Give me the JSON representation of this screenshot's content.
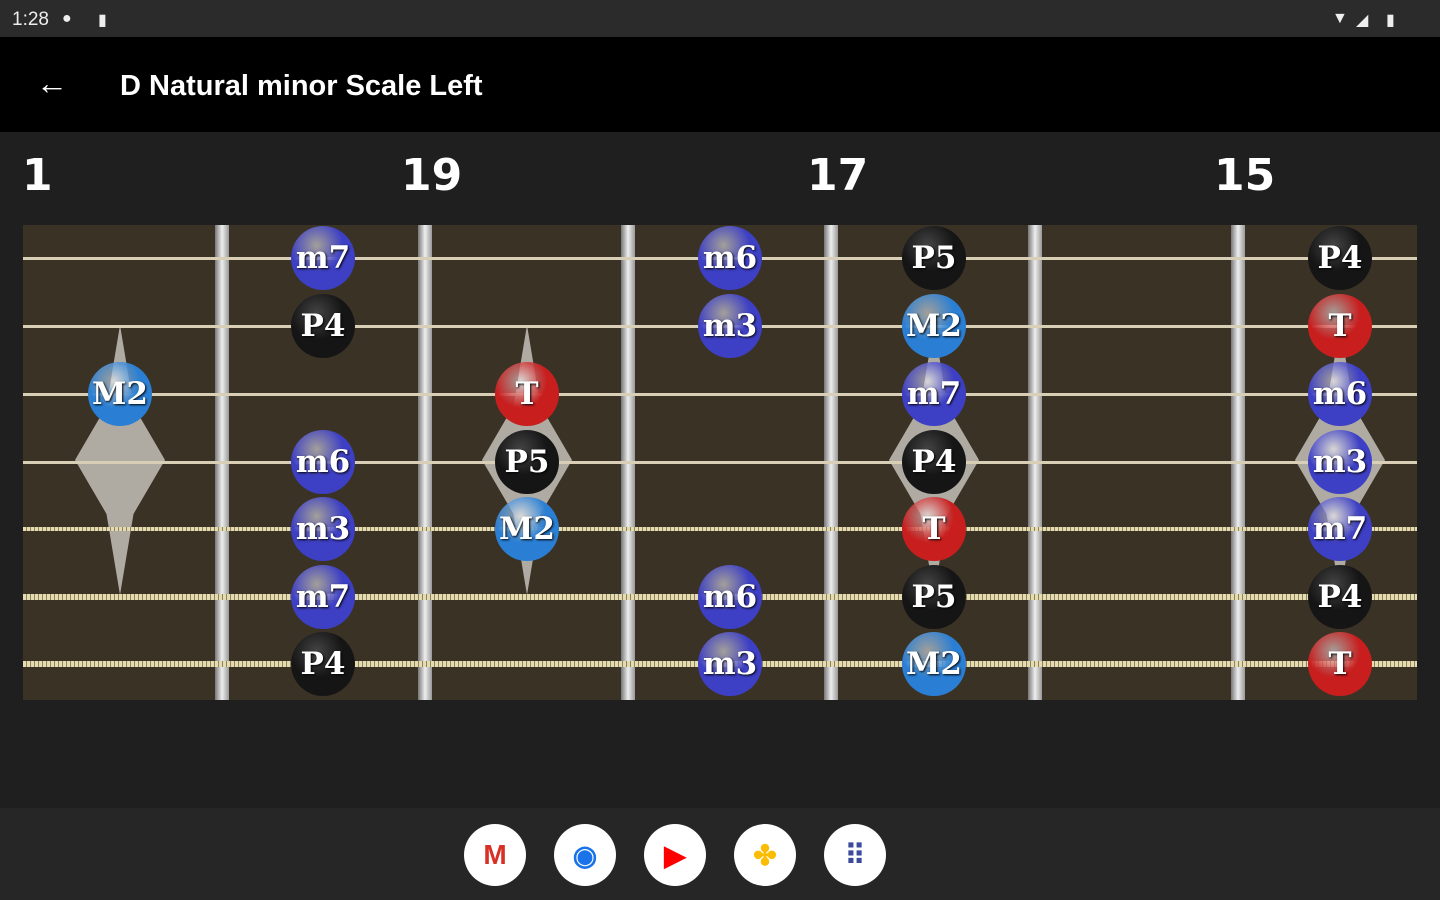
{
  "status_bar": {
    "time": "1:28"
  },
  "app_bar": {
    "title": "D Natural minor Scale Left",
    "back_icon": "arrow-left-icon"
  },
  "fret_numbers": [
    "1",
    "19",
    "17",
    "15"
  ],
  "colors": {
    "minor": "#3d3fc4",
    "major": "#2a7fd4",
    "tonic": "#c81e1e",
    "perfect": "#151515",
    "fretboard": "#3b3226"
  },
  "notes": [
    {
      "string": 1,
      "pos": 1,
      "label": "m7"
    },
    {
      "string": 1,
      "pos": 3,
      "label": "m6"
    },
    {
      "string": 1,
      "pos": 4,
      "label": "P5"
    },
    {
      "string": 1,
      "pos": 6,
      "label": "P4"
    },
    {
      "string": 2,
      "pos": 1,
      "label": "P4"
    },
    {
      "string": 2,
      "pos": 3,
      "label": "m3"
    },
    {
      "string": 2,
      "pos": 4,
      "label": "M2"
    },
    {
      "string": 2,
      "pos": 6,
      "label": "T"
    },
    {
      "string": 3,
      "pos": 0,
      "label": "M2"
    },
    {
      "string": 3,
      "pos": 2,
      "label": "T"
    },
    {
      "string": 3,
      "pos": 4,
      "label": "m7"
    },
    {
      "string": 3,
      "pos": 6,
      "label": "m6"
    },
    {
      "string": 4,
      "pos": 1,
      "label": "m6"
    },
    {
      "string": 4,
      "pos": 2,
      "label": "P5"
    },
    {
      "string": 4,
      "pos": 4,
      "label": "P4"
    },
    {
      "string": 4,
      "pos": 6,
      "label": "m3"
    },
    {
      "string": 5,
      "pos": 1,
      "label": "m3"
    },
    {
      "string": 5,
      "pos": 2,
      "label": "M2"
    },
    {
      "string": 5,
      "pos": 4,
      "label": "T"
    },
    {
      "string": 5,
      "pos": 6,
      "label": "m7"
    },
    {
      "string": 6,
      "pos": 1,
      "label": "m7"
    },
    {
      "string": 6,
      "pos": 3,
      "label": "m6"
    },
    {
      "string": 6,
      "pos": 4,
      "label": "P5"
    },
    {
      "string": 6,
      "pos": 6,
      "label": "P4"
    },
    {
      "string": 7,
      "pos": 1,
      "label": "P4"
    },
    {
      "string": 7,
      "pos": 3,
      "label": "m3"
    },
    {
      "string": 7,
      "pos": 4,
      "label": "M2"
    },
    {
      "string": 7,
      "pos": 6,
      "label": "T"
    }
  ],
  "dock": [
    {
      "name": "gmail",
      "glyph": "M",
      "color": "#d93025"
    },
    {
      "name": "chrome",
      "glyph": "◉",
      "color": "#1a73e8"
    },
    {
      "name": "youtube",
      "glyph": "▶",
      "color": "#ff0000"
    },
    {
      "name": "photos",
      "glyph": "✤",
      "color": "#fbbc04"
    },
    {
      "name": "app-drawer",
      "glyph": "⠿",
      "color": "#3c4a9a"
    }
  ]
}
